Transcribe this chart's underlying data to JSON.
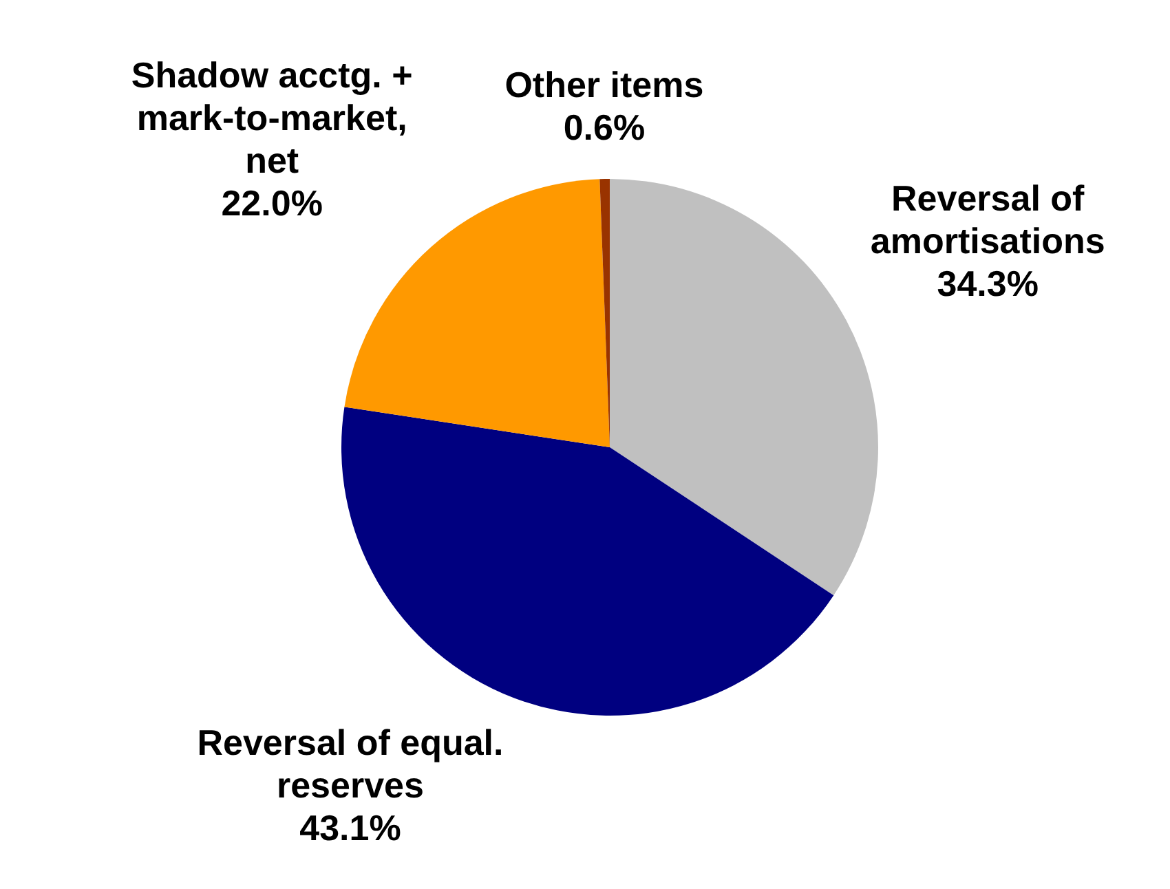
{
  "chart_data": {
    "type": "pie",
    "categories": [
      "Reversal of amortisations",
      "Reversal of equal. reserves",
      "Shadow acctg. + mark-to-market, net",
      "Other items"
    ],
    "values": [
      34.3,
      43.1,
      22.0,
      0.6
    ],
    "colors": [
      "#c0c0c0",
      "#000080",
      "#ff9900",
      "#993300"
    ],
    "value_labels": [
      "34.3%",
      "43.1%",
      "22.0%",
      "0.6%"
    ],
    "legend": false
  }
}
